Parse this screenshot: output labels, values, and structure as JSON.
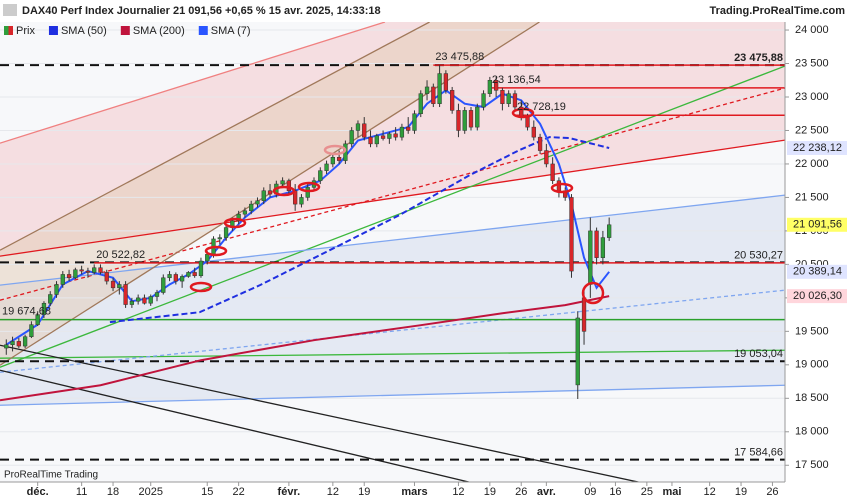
{
  "chart_data": {
    "type": "candlestick",
    "title": "DAX40 Perf Index Journalier 21 091,56 +0,65 % 15 avr. 2025, 14:33:18",
    "source": "Trading.ProRealTime.com",
    "footer": "ProRealTime Trading",
    "xlim": [
      -1,
      124
    ],
    "xticks": [
      {
        "value": 5,
        "label": "déc."
      },
      {
        "value": 12,
        "label": "11"
      },
      {
        "value": 17,
        "label": "18"
      },
      {
        "value": 23,
        "label": "2025"
      },
      {
        "value": 32,
        "label": "15"
      },
      {
        "value": 37,
        "label": "22"
      },
      {
        "value": 45,
        "label": "févr."
      },
      {
        "value": 52,
        "label": "12"
      },
      {
        "value": 57,
        "label": "19"
      },
      {
        "value": 65,
        "label": "mars"
      },
      {
        "value": 72,
        "label": "12"
      },
      {
        "value": 77,
        "label": "19"
      },
      {
        "value": 82,
        "label": "26"
      },
      {
        "value": 86,
        "label": "avr."
      },
      {
        "value": 93,
        "label": "09"
      },
      {
        "value": 97,
        "label": "16"
      },
      {
        "value": 102,
        "label": "25"
      },
      {
        "value": 106,
        "label": "mai"
      },
      {
        "value": 112,
        "label": "12"
      },
      {
        "value": 117,
        "label": "19"
      },
      {
        "value": 122,
        "label": "26"
      }
    ],
    "ylim": [
      17250,
      24120
    ],
    "yticks": [
      {
        "value": 17500,
        "label": "17 500"
      },
      {
        "value": 18000,
        "label": "18 000"
      },
      {
        "value": 18500,
        "label": "18 500"
      },
      {
        "value": 19000,
        "label": "19 000"
      },
      {
        "value": 19500,
        "label": "19 500"
      },
      {
        "value": 20000,
        "label": "20 000"
      },
      {
        "value": 20500,
        "label": "20 500"
      },
      {
        "value": 21000,
        "label": "21 000"
      },
      {
        "value": 21500,
        "label": "21 500"
      },
      {
        "value": 22000,
        "label": "22 000"
      },
      {
        "value": 22500,
        "label": "22 500"
      },
      {
        "value": 23000,
        "label": "23 000"
      },
      {
        "value": 23500,
        "label": "23 500"
      },
      {
        "value": 24000,
        "label": "24 000"
      }
    ],
    "series": [
      {
        "name": "Prix",
        "type": "candlestick",
        "color": "#2f9e3c",
        "down_color": "#d8262a",
        "open": [
          19250,
          19300,
          19350,
          19280,
          19420,
          19600,
          19750,
          19920,
          20050,
          20200,
          20350,
          20300,
          20420,
          20400,
          20380,
          20450,
          20380,
          20250,
          20150,
          20200,
          19900,
          19950,
          20000,
          19920,
          20020,
          20080,
          20300,
          20350,
          20250,
          20320,
          20380,
          20330,
          20550,
          20650,
          20880,
          20900,
          21050,
          21150,
          21250,
          21300,
          21400,
          21450,
          21600,
          21550,
          21700,
          21750,
          21600,
          21400,
          21500,
          21650,
          21750,
          21900,
          22000,
          22100,
          22050,
          22300,
          22500,
          22600,
          22400,
          22300,
          22420,
          22380,
          22450,
          22400,
          22550,
          22500,
          22750,
          23050,
          23150,
          22900,
          23350,
          23100,
          22800,
          22500,
          22800,
          22550,
          22850,
          23050,
          23250,
          23100,
          22900,
          23050,
          22850,
          22700,
          22550,
          22400,
          22200,
          22000,
          21750,
          21600,
          21500,
          18700,
          20000,
          20200,
          21000,
          20600,
          20900
        ],
        "high": [
          19380,
          19420,
          19400,
          19450,
          19650,
          19800,
          19950,
          20100,
          20250,
          20400,
          20420,
          20450,
          20480,
          20450,
          20500,
          20500,
          20420,
          20300,
          20250,
          20250,
          20000,
          20050,
          20050,
          20050,
          20120,
          20350,
          20400,
          20380,
          20350,
          20400,
          20450,
          20600,
          20700,
          20920,
          20950,
          21100,
          21200,
          21300,
          21350,
          21450,
          21500,
          21650,
          21700,
          21750,
          21800,
          21780,
          21700,
          21550,
          21700,
          21800,
          21950,
          22050,
          22150,
          22200,
          22350,
          22550,
          22650,
          22700,
          22500,
          22450,
          22500,
          22480,
          22550,
          22600,
          22700,
          22800,
          23100,
          23250,
          23200,
          23476,
          23400,
          23150,
          22900,
          22850,
          22850,
          22900,
          23100,
          23300,
          23300,
          23137,
          23100,
          23100,
          22950,
          22750,
          22650,
          22450,
          22300,
          22100,
          21800,
          21650,
          21550,
          19800,
          20100,
          21200,
          21050,
          21000,
          21200
        ],
        "low": [
          19150,
          19200,
          19250,
          19250,
          19400,
          19580,
          19700,
          19880,
          20000,
          20150,
          20250,
          20280,
          20350,
          20300,
          20350,
          20350,
          20200,
          20100,
          20050,
          19850,
          19850,
          19900,
          19900,
          19880,
          19950,
          20050,
          20250,
          20200,
          20150,
          20300,
          20300,
          20300,
          20500,
          20600,
          20800,
          20850,
          21000,
          21100,
          21200,
          21250,
          21350,
          21400,
          21500,
          21500,
          21650,
          21550,
          21300,
          21350,
          21450,
          21600,
          21700,
          21850,
          21950,
          22000,
          22000,
          22250,
          22400,
          22350,
          22250,
          22250,
          22350,
          22300,
          22350,
          22350,
          22450,
          22450,
          22700,
          22950,
          22850,
          22850,
          23050,
          22750,
          22400,
          22450,
          22500,
          22500,
          22800,
          23000,
          23000,
          22800,
          22850,
          22800,
          22650,
          22500,
          22350,
          22150,
          21950,
          21700,
          21500,
          21450,
          20300,
          18490,
          19300,
          20000,
          20500,
          20500,
          20850
        ],
        "close": [
          19300,
          19350,
          19280,
          19420,
          19600,
          19750,
          19920,
          20050,
          20200,
          20350,
          20300,
          20420,
          20400,
          20380,
          20450,
          20380,
          20250,
          20150,
          20200,
          19900,
          19950,
          20000,
          19920,
          20020,
          20080,
          20300,
          20350,
          20250,
          20320,
          20380,
          20330,
          20550,
          20650,
          20880,
          20900,
          21050,
          21150,
          21250,
          21300,
          21400,
          21450,
          21600,
          21550,
          21700,
          21750,
          21600,
          21400,
          21500,
          21650,
          21750,
          21900,
          22000,
          22100,
          22050,
          22300,
          22500,
          22600,
          22400,
          22300,
          22420,
          22380,
          22450,
          22400,
          22550,
          22500,
          22750,
          23050,
          23150,
          22900,
          23350,
          23100,
          22800,
          22500,
          22800,
          22550,
          22850,
          23050,
          23250,
          23100,
          22900,
          23050,
          22850,
          22700,
          22550,
          22400,
          22200,
          22000,
          21750,
          21600,
          21500,
          20400,
          19700,
          19500,
          21000,
          20600,
          20900,
          21091.56
        ]
      },
      {
        "name": "SMA (50)",
        "type": "line",
        "color": "#1f2fe0",
        "dashed": true,
        "x": [
          16.5,
          30.8,
          40.4,
          51.5,
          62.6,
          73.8,
          81.7,
          86.5,
          89.7,
          96
        ],
        "values": [
          19637,
          19786,
          20190,
          20712,
          21236,
          21833,
          22207,
          22401,
          22386,
          22238.12
        ]
      },
      {
        "name": "SMA (200)",
        "type": "line",
        "color": "#c0143c",
        "dashed": false,
        "x": [
          -1,
          15,
          31,
          49,
          66,
          79,
          89,
          96
        ],
        "values": [
          18470,
          18695,
          19069,
          19368,
          19592,
          19771,
          19891,
          20026.3
        ]
      },
      {
        "name": "SMA (7)",
        "type": "line",
        "color": "#2a55ff",
        "dashed": false,
        "x": [
          0,
          5,
          9,
          13,
          17,
          20,
          23,
          26,
          29,
          32,
          35,
          38,
          42,
          46,
          50,
          53,
          56,
          60,
          64,
          67,
          70,
          73,
          76,
          79,
          82,
          85,
          88,
          90,
          92,
          94,
          96
        ],
        "values": [
          19300,
          19600,
          20200,
          20400,
          20300,
          19950,
          20000,
          20200,
          20350,
          20550,
          20900,
          21200,
          21500,
          21600,
          21750,
          22000,
          22350,
          22450,
          22550,
          22900,
          23100,
          22900,
          22850,
          23050,
          22950,
          22600,
          22000,
          21400,
          20600,
          20150,
          20389.14
        ]
      }
    ],
    "levels": [
      {
        "value": 23475.88,
        "label": "23 475,88",
        "color": "#111111",
        "style": "dashed",
        "label_side": "right",
        "x_start": -1
      },
      {
        "value": 23475.88,
        "label": "23 475,88",
        "color": "#e0191f",
        "style": "solid",
        "label_side": "start",
        "x_start": 68
      },
      {
        "value": 23136.54,
        "label": "23 136,54",
        "color": "#e0191f",
        "style": "solid",
        "label_side": "start",
        "x_start": 77
      },
      {
        "value": 22728.19,
        "label": "22 728,19",
        "color": "#e0191f",
        "style": "solid",
        "label_side": "start",
        "x_start": 81
      },
      {
        "value": 20530.27,
        "label": "20 530,27",
        "color": "#111111",
        "style": "dashed",
        "label_side": "right",
        "x_start": -1
      },
      {
        "value": 20522.82,
        "label": "20 522,82",
        "color": "#e0191f",
        "style": "solid",
        "label_side": "start",
        "x_start": 14
      },
      {
        "value": 19674.68,
        "label": "19 674,68",
        "color": "#2aa02a",
        "style": "solid",
        "label_side": "start",
        "x_start": -1
      },
      {
        "value": 19053.04,
        "label": "19 053,04",
        "color": "#111111",
        "style": "dashed",
        "label_side": "right",
        "x_start": -1
      },
      {
        "value": 17584.66,
        "label": "17 584,66",
        "color": "#111111",
        "style": "dashed",
        "label_side": "right",
        "x_start": -1
      }
    ],
    "trendlines": [
      {
        "color": "#f08080",
        "dashed": false,
        "points": [
          [
            -1,
            22311
          ],
          [
            60.3,
            24120
          ]
        ]
      },
      {
        "color": "#e0191f",
        "dashed": false,
        "points": [
          [
            -1,
            20623
          ],
          [
            124,
            22356
          ]
        ]
      },
      {
        "color": "#e0191f",
        "dashed": true,
        "points": [
          [
            -1,
            19965
          ],
          [
            124,
            23133
          ]
        ]
      },
      {
        "color": "#3cb83c",
        "dashed": false,
        "points": [
          [
            -1,
            18964
          ],
          [
            124,
            23462
          ]
        ]
      },
      {
        "color": "#3cb83c",
        "dashed": false,
        "points": [
          [
            -1,
            19099
          ],
          [
            124,
            19218
          ]
        ]
      },
      {
        "color": "#7fa6f0",
        "dashed": false,
        "points": [
          [
            -1,
            20190
          ],
          [
            124,
            21534
          ]
        ]
      },
      {
        "color": "#7fa6f0",
        "dashed": false,
        "points": [
          [
            -1,
            18396
          ],
          [
            124,
            18695
          ]
        ]
      },
      {
        "color": "#7fa6f0",
        "dashed": true,
        "points": [
          [
            -1,
            18889
          ],
          [
            124,
            20115
          ]
        ]
      },
      {
        "color": "#a0785a",
        "dashed": false,
        "points": [
          [
            -1,
            20712
          ],
          [
            67.4,
            24120
          ]
        ]
      },
      {
        "color": "#a0785a",
        "dashed": false,
        "points": [
          [
            -1,
            18994
          ],
          [
            84.9,
            24120
          ]
        ]
      },
      {
        "color": "#222222",
        "dashed": false,
        "points": [
          [
            -1,
            19293
          ],
          [
            100.8,
            17246
          ]
        ]
      },
      {
        "color": "#222222",
        "dashed": false,
        "points": [
          [
            -1,
            18919
          ],
          [
            73.8,
            17246
          ]
        ]
      }
    ],
    "price_labels": [
      {
        "value": 22238.12,
        "label": "22 238,12",
        "color": "#1f2fe0",
        "background": "#dfe4ff"
      },
      {
        "value": 21091.56,
        "label": "21 091,56",
        "color": "#111111",
        "background": "#ffff66"
      },
      {
        "value": 20389.14,
        "label": "20 389,14",
        "color": "#1f2fe0",
        "background": "#dfe4ff"
      },
      {
        "value": 20026.3,
        "label": "20 026,30",
        "color": "#c0143c",
        "background": "#ffd6dc"
      }
    ]
  }
}
